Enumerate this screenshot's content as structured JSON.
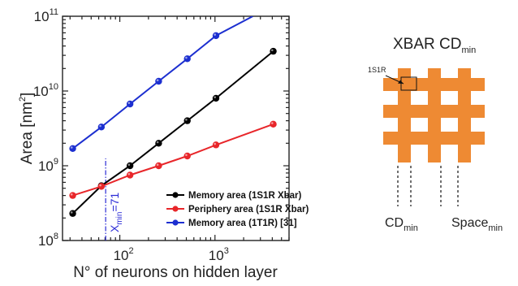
{
  "chart_data": {
    "type": "line",
    "xlabel": "N° of neurons on hidden layer",
    "ylabel": "Area [nm",
    "ylabel_sup": "2",
    "ylabel_end": "]",
    "xscale": "log",
    "yscale": "log",
    "xlim": [
      25,
      6000
    ],
    "ylim": [
      100000000,
      100000000000
    ],
    "x_ticks": [
      {
        "value": 100,
        "base": "10",
        "exp": "2"
      },
      {
        "value": 1000,
        "base": "10",
        "exp": "3"
      }
    ],
    "y_ticks": [
      {
        "value": 100000000,
        "base": "10",
        "exp": "8"
      },
      {
        "value": 1000000000,
        "base": "10",
        "exp": "9"
      },
      {
        "value": 10000000000,
        "base": "10",
        "exp": "10"
      },
      {
        "value": 100000000000,
        "base": "10",
        "exp": "11"
      }
    ],
    "legend_position": "bottom-right",
    "series": [
      {
        "name": "Memory area (1S1R Xbar)",
        "color": "#000000",
        "x": [
          32,
          64,
          128,
          256,
          512,
          1024,
          4096
        ],
        "y": [
          230000000,
          540000000,
          1000000000,
          2000000000,
          4000000000,
          8000000000,
          34000000000
        ]
      },
      {
        "name": "Periphery area (1S1R Xbar)",
        "color": "#e8262a",
        "x": [
          32,
          64,
          128,
          256,
          512,
          1024,
          4096
        ],
        "y": [
          400000000,
          530000000,
          750000000,
          1000000000,
          1350000000,
          1900000000,
          3600000000
        ]
      },
      {
        "name": "Memory area (1T1R) [31]",
        "color": "#1c2fd0",
        "x": [
          32,
          64,
          128,
          256,
          512,
          1024,
          2500
        ],
        "y": [
          1700000000,
          3300000000,
          6700000000,
          13500000000,
          27000000000,
          55000000000,
          100000000000
        ]
      }
    ],
    "annotations": [
      {
        "text_main": "X",
        "text_sub": "min",
        "text_end": "=71",
        "x": 71,
        "color": "#2b2bd6"
      }
    ]
  },
  "xbar_diagram": {
    "title_main": "XBAR CD",
    "title_sub": "min",
    "cell_label": "1S1R",
    "cd_main": "CD",
    "cd_sub": "min",
    "space_main": "Space",
    "space_sub": "min",
    "color": "#ee8a33"
  }
}
